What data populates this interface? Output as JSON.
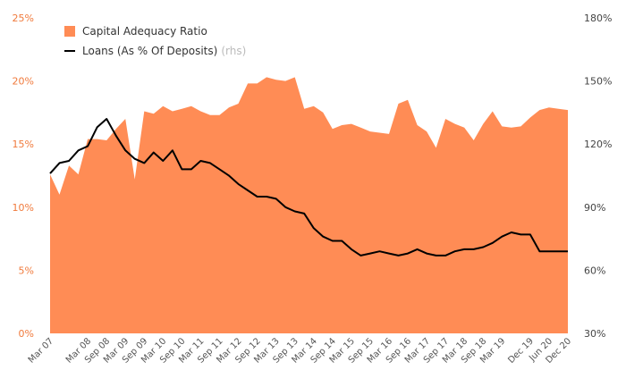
{
  "chart_data": {
    "type": "area",
    "categories": [
      "Mar 07",
      "Jun 07",
      "Sep 07",
      "Dec 07",
      "Mar 08",
      "Jun 08",
      "Sep 08",
      "Dec 08",
      "Mar 09",
      "Jun 09",
      "Sep 09",
      "Dec 09",
      "Mar 10",
      "Jun 10",
      "Sep 10",
      "Dec 10",
      "Mar 11",
      "Jun 11",
      "Sep 11",
      "Dec 11",
      "Mar 12",
      "Jun 12",
      "Sep 12",
      "Dec 12",
      "Mar 13",
      "Jun 13",
      "Sep 13",
      "Dec 13",
      "Mar 14",
      "Jun 14",
      "Sep 14",
      "Dec 14",
      "Mar 15",
      "Jun 15",
      "Sep 15",
      "Dec 15",
      "Mar 16",
      "Jun 16",
      "Sep 16",
      "Dec 16",
      "Mar 17",
      "Jun 17",
      "Sep 17",
      "Dec 17",
      "Mar 18",
      "Jun 18",
      "Sep 18",
      "Dec 18",
      "Mar 19",
      "Jun 19",
      "Sep 19",
      "Dec 19",
      "Mar 20",
      "Jun 20",
      "Sep 20",
      "Dec 20"
    ],
    "x_tick_labels": [
      "Mar 07",
      "Mar 08",
      "Sep 08",
      "Mar 09",
      "Sep 09",
      "Mar 10",
      "Sep 10",
      "Mar 11",
      "Sep 11",
      "Mar 12",
      "Sep 12",
      "Mar 13",
      "Sep 13",
      "Mar 14",
      "Sep 14",
      "Mar 15",
      "Sep 15",
      "Mar 16",
      "Sep 16",
      "Mar 17",
      "Sep 17",
      "Mar 18",
      "Sep 18",
      "Mar 19",
      "Dec 19",
      "Jun 20",
      "Dec 20"
    ],
    "y_left_ticks": [
      "0%",
      "5%",
      "10%",
      "15%",
      "20%",
      "25%"
    ],
    "y_left_range": [
      0,
      25
    ],
    "y_right_ticks": [
      "30%",
      "60%",
      "90%",
      "120%",
      "150%",
      "180%"
    ],
    "y_right_range": [
      30,
      180
    ],
    "series": [
      {
        "name": "Capital Adequacy Ratio",
        "axis": "left",
        "type": "area",
        "color": "#ff8c55",
        "values": [
          12.6,
          11.0,
          13.3,
          12.6,
          15.4,
          15.4,
          15.3,
          16.2,
          17.0,
          12.2,
          17.6,
          17.4,
          18.0,
          17.6,
          17.8,
          18.0,
          17.6,
          17.3,
          17.3,
          17.9,
          18.2,
          19.8,
          19.8,
          20.3,
          20.1,
          20.0,
          20.3,
          17.8,
          18.0,
          17.5,
          16.2,
          16.5,
          16.6,
          16.3,
          16.0,
          15.9,
          15.8,
          18.2,
          18.5,
          16.5,
          16.0,
          14.7,
          17.0,
          16.6,
          16.3,
          15.3,
          16.6,
          17.6,
          16.4,
          16.3,
          16.4,
          17.1,
          17.7,
          17.9,
          17.8,
          17.7
        ]
      },
      {
        "name": "Loans (As % Of Deposits)",
        "name_suffix": "(rhs)",
        "axis": "right",
        "type": "line",
        "color": "#000000",
        "values": [
          106,
          111,
          112,
          117,
          119,
          128,
          132,
          124,
          117,
          113,
          111,
          116,
          112,
          117,
          108,
          108,
          112,
          111,
          108,
          105,
          101,
          98,
          95,
          95,
          94,
          90,
          88,
          87,
          80,
          76,
          74,
          74,
          70,
          67,
          68,
          69,
          68,
          67,
          68,
          70,
          68,
          67,
          67,
          69,
          70,
          70,
          71,
          73,
          76,
          78,
          77,
          77,
          69,
          69,
          69,
          69
        ]
      }
    ],
    "legend_placement": "top-left",
    "grid": false
  }
}
